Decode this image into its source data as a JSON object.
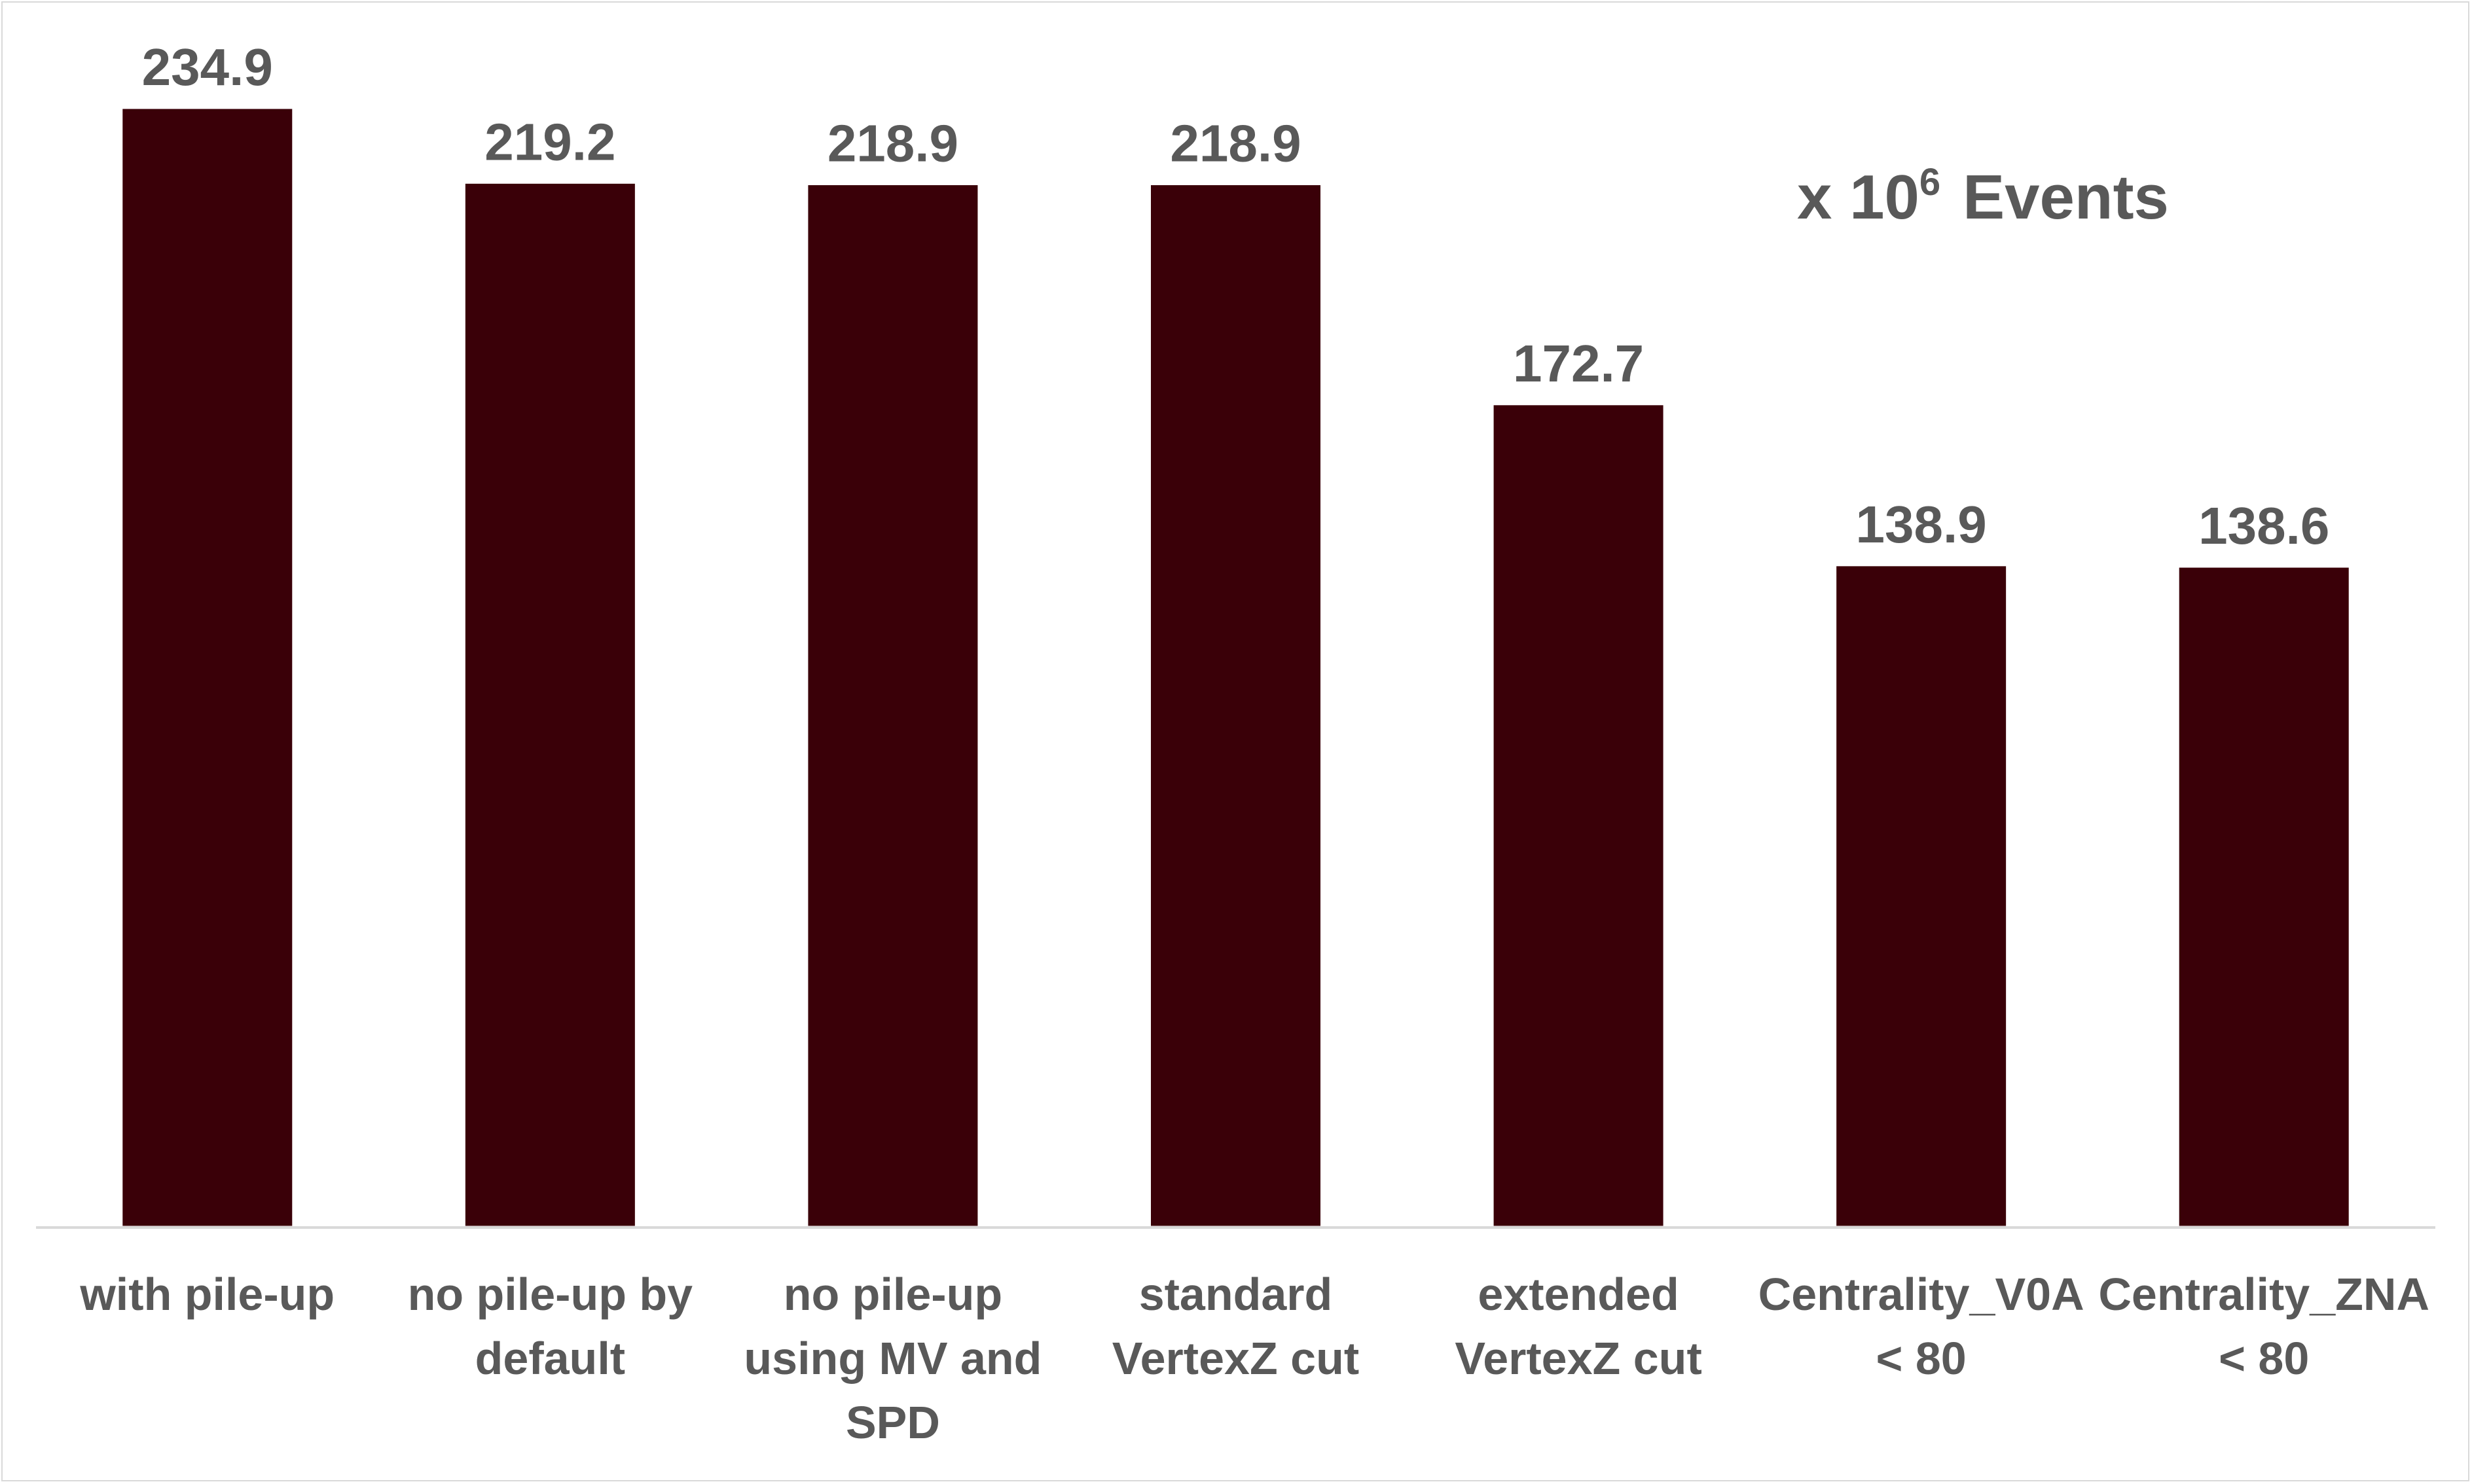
{
  "chart_data": {
    "type": "bar",
    "categories": [
      [
        "with pile-up"
      ],
      [
        "no pile-up by",
        "default"
      ],
      [
        "no pile-up",
        "using MV and",
        "SPD"
      ],
      [
        "standard",
        "VertexZ cut"
      ],
      [
        "extended",
        "VertexZ cut"
      ],
      [
        "Centrality_V0A",
        "< 80"
      ],
      [
        "Centrality_ZNA",
        "< 80"
      ]
    ],
    "values": [
      234.9,
      219.2,
      218.9,
      218.9,
      172.7,
      138.9,
      138.6
    ],
    "value_labels": [
      "234.9",
      "219.2",
      "218.9",
      "218.9",
      "172.7",
      "138.9",
      "138.6"
    ],
    "ylim": [
      0,
      234.9
    ],
    "annotation": {
      "prefix": "x 10",
      "superscript": "6",
      "suffix": "Events"
    },
    "grid": false,
    "legend": "none",
    "colors": {
      "bar": "#3a0008",
      "text": "#595959",
      "axis": "#d9d9d9"
    }
  }
}
